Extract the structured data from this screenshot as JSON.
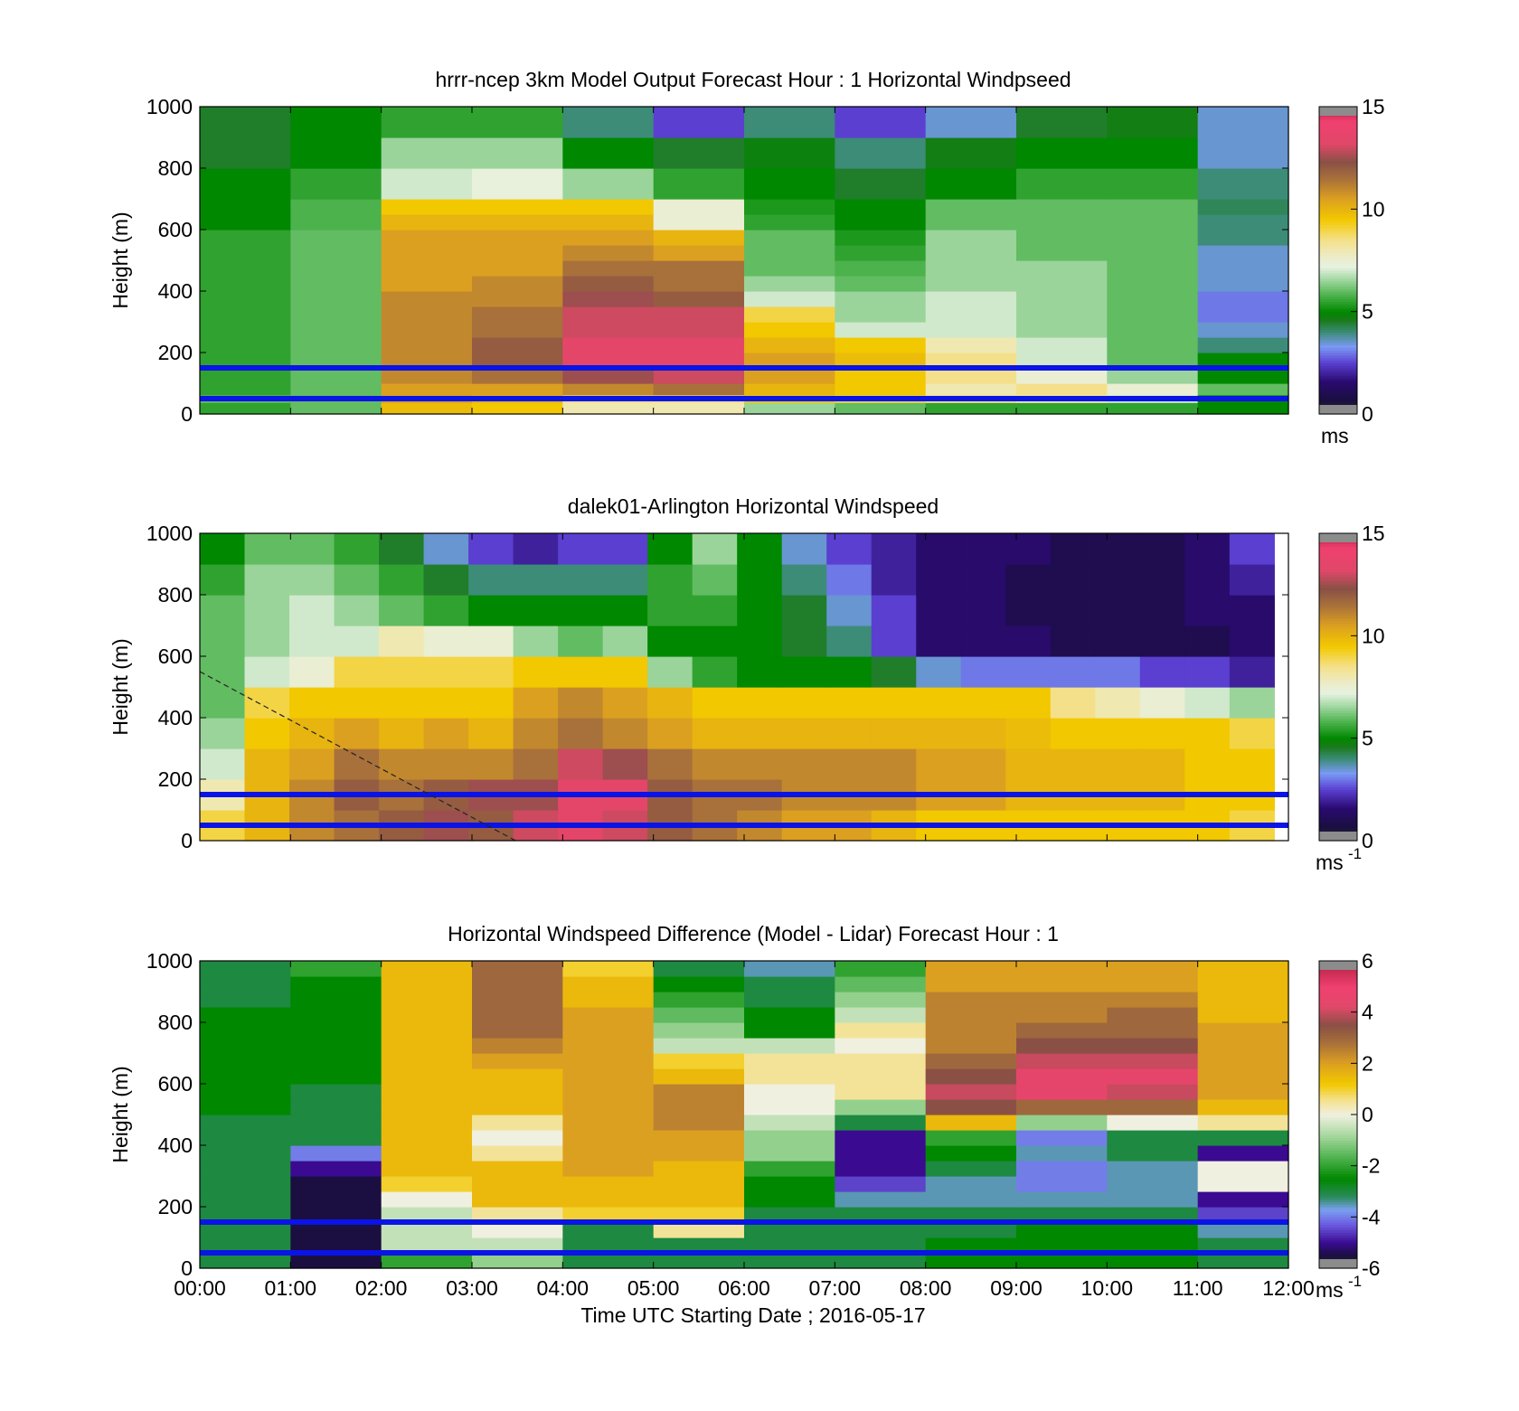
{
  "chart_data": [
    {
      "type": "heatmap",
      "title": "hrrr-ncep 3km Model Output   Forecast Hour : 1 Horizontal Windpseed",
      "ylabel": "Height (m)",
      "xlabel": "",
      "unit_label": "ms",
      "unit_sup": "",
      "ylim": [
        0,
        1000
      ],
      "yticks": [
        "0",
        "200",
        "400",
        "600",
        "800",
        "1000"
      ],
      "xticks": [],
      "colorbar": {
        "range": [
          0,
          15
        ],
        "ticks": [
          "0",
          "5",
          "10",
          "15"
        ],
        "scale": "wind"
      },
      "reference_lines_m": [
        50,
        150
      ],
      "x": [
        "00:00",
        "01:00",
        "02:00",
        "03:00",
        "04:00",
        "05:00",
        "06:00",
        "07:00",
        "08:00",
        "09:00",
        "10:00",
        "11:00"
      ],
      "y": [
        25,
        50,
        75,
        125,
        175,
        225,
        275,
        325,
        375,
        425,
        475,
        525,
        575,
        625,
        675,
        725,
        775,
        825,
        875,
        925,
        975
      ],
      "values": [
        [
          5.5,
          6.0,
          9.8,
          9.5,
          8.0,
          8.0,
          6.5,
          6.0,
          5.5,
          5.5,
          5.5,
          5.0
        ],
        [
          6.0,
          6.0,
          10.5,
          10.0,
          8.5,
          8.5,
          9.5,
          9.0,
          8.5,
          8.0,
          7.0,
          5.0
        ],
        [
          5.5,
          6.0,
          10.5,
          10.5,
          11.0,
          11.5,
          10.0,
          9.5,
          8.0,
          8.5,
          7.5,
          6.0
        ],
        [
          5.5,
          6.0,
          11.0,
          11.5,
          12.5,
          13.0,
          10.5,
          9.5,
          8.5,
          7.5,
          6.5,
          5.0
        ],
        [
          5.5,
          6.0,
          11.0,
          12.0,
          13.5,
          13.5,
          10.5,
          9.8,
          8.5,
          7.0,
          6.0,
          5.0
        ],
        [
          5.5,
          6.0,
          11.0,
          12.0,
          13.5,
          13.5,
          10.0,
          9.5,
          8.0,
          7.0,
          6.0,
          4.0
        ],
        [
          5.5,
          6.0,
          11.0,
          11.5,
          13.0,
          13.0,
          9.5,
          7.0,
          7.0,
          6.5,
          6.0,
          3.5
        ],
        [
          5.5,
          6.0,
          11.0,
          11.5,
          13.0,
          13.0,
          9.0,
          6.5,
          7.0,
          6.5,
          6.0,
          3.0
        ],
        [
          5.5,
          6.0,
          11.0,
          11.0,
          12.5,
          12.0,
          7.0,
          6.5,
          7.0,
          6.5,
          6.0,
          3.0
        ],
        [
          5.5,
          6.0,
          10.5,
          11.0,
          12.0,
          11.5,
          6.5,
          6.0,
          6.5,
          6.5,
          6.0,
          3.5
        ],
        [
          5.5,
          6.0,
          10.5,
          10.5,
          11.5,
          11.5,
          6.0,
          5.8,
          6.5,
          6.5,
          6.0,
          3.5
        ],
        [
          5.5,
          6.0,
          10.5,
          10.5,
          11.0,
          10.5,
          6.0,
          5.5,
          6.5,
          6.0,
          6.0,
          3.5
        ],
        [
          5.5,
          6.0,
          10.5,
          10.5,
          10.5,
          10.0,
          6.0,
          5.3,
          6.5,
          6.0,
          6.0,
          4.0
        ],
        [
          5.0,
          5.8,
          10.0,
          10.0,
          10.0,
          7.5,
          5.5,
          5.0,
          6.0,
          6.0,
          6.0,
          4.0
        ],
        [
          5.0,
          5.8,
          9.5,
          9.5,
          9.5,
          7.5,
          5.3,
          5.0,
          6.0,
          6.0,
          6.0,
          4.2
        ],
        [
          5.0,
          5.5,
          7.0,
          7.3,
          6.5,
          5.5,
          5.0,
          4.5,
          5.0,
          5.5,
          5.5,
          4.0
        ],
        [
          5.0,
          5.5,
          7.0,
          7.3,
          6.5,
          5.5,
          5.0,
          4.5,
          5.0,
          5.5,
          5.5,
          4.0
        ],
        [
          4.5,
          5.0,
          6.5,
          6.5,
          5.0,
          4.5,
          4.8,
          4.0,
          4.7,
          5.0,
          5.0,
          3.5
        ],
        [
          4.5,
          5.0,
          6.5,
          6.5,
          5.0,
          4.5,
          4.8,
          4.0,
          4.7,
          5.0,
          5.0,
          3.5
        ],
        [
          4.5,
          5.0,
          5.5,
          5.5,
          4.0,
          2.5,
          4.0,
          2.5,
          3.5,
          4.5,
          4.7,
          3.5
        ],
        [
          4.5,
          5.0,
          5.5,
          5.5,
          4.0,
          2.5,
          4.0,
          2.5,
          3.5,
          4.5,
          4.7,
          3.5
        ]
      ]
    },
    {
      "type": "heatmap",
      "title": "dalek01-Arlington  Horizontal Windspeed",
      "ylabel": "Height (m)",
      "xlabel": "",
      "unit_label": "ms",
      "unit_sup": "-1",
      "ylim": [
        0,
        1000
      ],
      "yticks": [
        "0",
        "200",
        "400",
        "600",
        "800",
        "1000"
      ],
      "xticks": [],
      "colorbar": {
        "range": [
          0,
          15
        ],
        "ticks": [
          "0",
          "5",
          "10",
          "15"
        ],
        "scale": "wind"
      },
      "reference_lines_m": [
        50,
        150
      ],
      "x": [
        "00:00",
        "00:30",
        "01:00",
        "01:30",
        "02:00",
        "02:30",
        "03:00",
        "03:30",
        "04:00",
        "04:30",
        "05:00",
        "05:30",
        "06:00",
        "06:30",
        "07:00",
        "07:30",
        "08:00",
        "08:30",
        "09:00",
        "09:30",
        "10:00",
        "10:30",
        "11:00",
        "11:30"
      ],
      "y": [
        50,
        150,
        250,
        350,
        450,
        550,
        650,
        750,
        850,
        950
      ],
      "values": [
        [
          9,
          10,
          11,
          11.5,
          12,
          12.5,
          12,
          13,
          13.5,
          13,
          12,
          11.5,
          11,
          10.5,
          10.5,
          10,
          9.5,
          9.5,
          9.5,
          9.5,
          9.5,
          9.5,
          9.5,
          9
        ],
        [
          8,
          10,
          11,
          12,
          11.5,
          12,
          12.5,
          12.5,
          13.5,
          13.5,
          12,
          11.5,
          11.5,
          11,
          11,
          11,
          10.5,
          10.5,
          10,
          10,
          10,
          10,
          9.5,
          9.5
        ],
        [
          7,
          10,
          10.5,
          11.5,
          11,
          11,
          11,
          11.5,
          13,
          12.5,
          11.5,
          11,
          11,
          11,
          11,
          11,
          10.5,
          10.5,
          10,
          10,
          10,
          10,
          9.5,
          9.5
        ],
        [
          6.5,
          9.5,
          10,
          10.5,
          10,
          10.5,
          10,
          11,
          11.5,
          11,
          10.5,
          10,
          10,
          10,
          10,
          10,
          10,
          10,
          9.8,
          9.5,
          9.5,
          9.5,
          9.5,
          9
        ],
        [
          6,
          9,
          9.5,
          9.5,
          9.5,
          9.5,
          9.5,
          10.5,
          11,
          10.5,
          10,
          9.5,
          9.5,
          9.5,
          9.5,
          9.5,
          9.5,
          9.5,
          9.5,
          8.5,
          8,
          7.5,
          7,
          6.5
        ],
        [
          6,
          7,
          7.5,
          9,
          9,
          9,
          9,
          9.5,
          9.5,
          9.5,
          6.5,
          5.5,
          5,
          5,
          5,
          4.5,
          3.5,
          3,
          3,
          3,
          3,
          2.5,
          2.5,
          2
        ],
        [
          6,
          6.5,
          7,
          7,
          8,
          7.5,
          7.5,
          6.5,
          6,
          6.5,
          5,
          5,
          5,
          4.5,
          4,
          2.5,
          1.5,
          1.5,
          1.5,
          1,
          1,
          1,
          1,
          1.5
        ],
        [
          6,
          6.5,
          7,
          6.5,
          6,
          5.5,
          5,
          5,
          5,
          5,
          5.5,
          5.5,
          5,
          4.5,
          3.5,
          2.5,
          1.5,
          1.5,
          1,
          1,
          1,
          1,
          1.5,
          1.5
        ],
        [
          5.5,
          6.5,
          6.5,
          6,
          5.5,
          4.5,
          4,
          4,
          4,
          4,
          5.5,
          6,
          5,
          4,
          3,
          2,
          1.5,
          1.5,
          1,
          1,
          1,
          1,
          1.5,
          2
        ],
        [
          5,
          6,
          6,
          5.5,
          4.5,
          3.5,
          2.5,
          2,
          2.5,
          2.5,
          5,
          6.5,
          5,
          3.5,
          2.5,
          2,
          1.5,
          1.5,
          1.5,
          1,
          1,
          1,
          1.5,
          2.5
        ]
      ]
    },
    {
      "type": "heatmap",
      "title": "Horizontal Windspeed Difference (Model - Lidar) Forecast Hour : 1",
      "ylabel": "Height (m)",
      "xlabel": "Time UTC  Starting Date ; 2016-05-17",
      "unit_label": "ms",
      "unit_sup": "-1",
      "ylim": [
        0,
        1000
      ],
      "yticks": [
        "0",
        "200",
        "400",
        "600",
        "800",
        "1000"
      ],
      "xticks": [
        "00:00",
        "01:00",
        "02:00",
        "03:00",
        "04:00",
        "05:00",
        "06:00",
        "07:00",
        "08:00",
        "09:00",
        "10:00",
        "11:00",
        "12:00"
      ],
      "colorbar": {
        "range": [
          -6,
          6
        ],
        "ticks": [
          "-6",
          "-4",
          "-2",
          "0",
          "2",
          "4",
          "6"
        ],
        "scale": "diff"
      },
      "reference_lines_m": [
        50,
        150
      ],
      "x": [
        "00:00",
        "01:00",
        "02:00",
        "03:00",
        "04:00",
        "05:00",
        "06:00",
        "07:00",
        "08:00",
        "09:00",
        "10:00",
        "11:00"
      ],
      "y": [
        25,
        75,
        125,
        175,
        225,
        275,
        325,
        375,
        425,
        475,
        525,
        575,
        625,
        675,
        725,
        775,
        825,
        875,
        925,
        975
      ],
      "values": [
        [
          -3,
          -5.5,
          -2,
          -1,
          -3,
          -3,
          -3,
          -3,
          -2.5,
          -2.5,
          -2.5,
          -3
        ],
        [
          -3,
          -5.5,
          -0.5,
          -0.5,
          -3,
          -3,
          -3,
          -3,
          -2.5,
          -2.5,
          -2.5,
          -3
        ],
        [
          -3,
          -5.5,
          -0.5,
          0,
          -3,
          0.5,
          -3,
          -3,
          -3,
          -2.5,
          -2.5,
          -3.5
        ],
        [
          -3,
          -5.5,
          -0.5,
          0.5,
          1,
          1,
          -3,
          -3,
          -3,
          -3,
          -3,
          -4.5
        ],
        [
          -3,
          -5.5,
          0,
          1.5,
          1.5,
          1.5,
          -2.5,
          -3.5,
          -3.5,
          -3.5,
          -3.5,
          -5
        ],
        [
          -3,
          -5.5,
          1,
          1.5,
          1.5,
          1.5,
          -2.5,
          -4.5,
          -3.5,
          -4,
          -3.5,
          0
        ],
        [
          -3,
          -5,
          1.5,
          1.5,
          2,
          1.5,
          -2,
          -5,
          -3,
          -4,
          -3.5,
          0
        ],
        [
          -3,
          -4,
          1.5,
          0.5,
          2,
          2,
          -1,
          -5,
          -2.5,
          -3.5,
          -3,
          -5
        ],
        [
          -3,
          -3,
          1.5,
          0,
          2,
          2,
          -1,
          -5,
          -2,
          -4,
          -3,
          -3
        ],
        [
          -3,
          -3,
          1.5,
          0.5,
          2,
          2.5,
          -0.5,
          -3,
          1.5,
          -1,
          0,
          0.5
        ],
        [
          -2.5,
          -3,
          1.5,
          1.5,
          2,
          2.5,
          0,
          -1,
          3.5,
          3,
          3,
          1.5
        ],
        [
          -2.5,
          -3,
          1.5,
          1.5,
          2,
          2.5,
          0,
          0.5,
          4,
          4.5,
          4,
          2
        ],
        [
          -2.5,
          -2.5,
          1.5,
          1.5,
          2,
          1.5,
          0.5,
          0.5,
          3.5,
          4.5,
          4.5,
          2
        ],
        [
          -2.5,
          -2.5,
          1.5,
          2,
          2,
          1,
          0.5,
          0.5,
          3,
          4,
          4,
          2
        ],
        [
          -2.5,
          -2.5,
          1.5,
          2.5,
          2,
          -0.5,
          -0.5,
          0,
          2.5,
          3.5,
          3.5,
          2
        ],
        [
          -2.5,
          -2.5,
          1.5,
          3,
          2,
          -1,
          -2.5,
          0.5,
          2.5,
          3,
          3,
          2
        ],
        [
          -2.5,
          -2.5,
          1.5,
          3,
          2,
          -1.5,
          -2.5,
          -0.5,
          2.5,
          2.5,
          3,
          1.5
        ],
        [
          -3,
          -2.5,
          1.5,
          3,
          1.5,
          -2,
          -3,
          -1,
          2.5,
          2.5,
          2.5,
          1.5
        ],
        [
          -3,
          -2.5,
          1.5,
          3,
          1.5,
          -2.5,
          -3,
          -1.5,
          2,
          2,
          2,
          1.5
        ],
        [
          -3,
          -2,
          1.5,
          3,
          1,
          -3,
          -3.5,
          -2,
          2,
          2,
          2,
          1.5
        ]
      ]
    }
  ]
}
